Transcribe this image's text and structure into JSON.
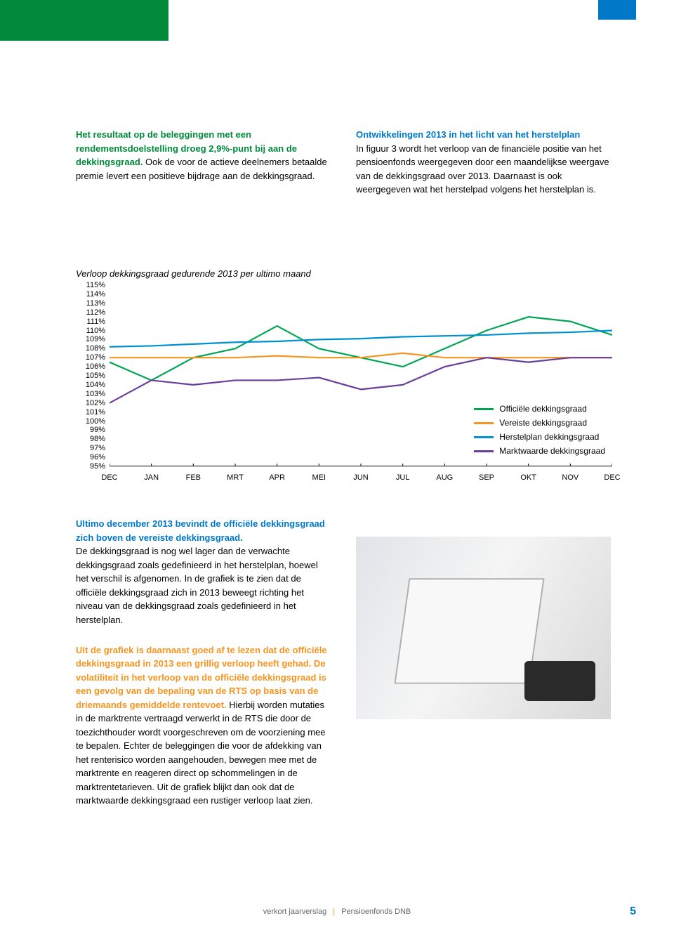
{
  "top": {
    "left_bold": "Het resultaat op de beleggingen met een rendementsdoelstelling droeg 2,9%-punt bij aan de dekkingsgraad.",
    "left_body": "Ook de voor de actieve deelnemers betaalde premie levert een positieve bijdrage aan de dekkingsgraad.",
    "right_head": "Ontwikkelingen 2013 in het licht van het herstelplan",
    "right_body": "In figuur 3 wordt het verloop van de financiële positie van het pensioenfonds weergegeven door een maandelijkse weergave van de dekkingsgraad over 2013. Daarnaast is ook weergegeven wat het herstelpad volgens het herstelplan is."
  },
  "chart": {
    "title": "Verloop dekkingsgraad gedurende 2013 per ultimo maand",
    "type": "line",
    "ylim": [
      95,
      115
    ],
    "ytick_labels": [
      "115%",
      "114%",
      "113%",
      "112%",
      "111%",
      "110%",
      "109%",
      "108%",
      "107%",
      "106%",
      "105%",
      "104%",
      "103%",
      "102%",
      "101%",
      "100%",
      "99%",
      "98%",
      "97%",
      "96%",
      "95%"
    ],
    "x_categories": [
      "DEC",
      "JAN",
      "FEB",
      "MRT",
      "APR",
      "MEI",
      "JUN",
      "JUL",
      "AUG",
      "SEP",
      "OKT",
      "NOV",
      "DEC"
    ],
    "series": [
      {
        "name": "Officiële dekkingsgraad",
        "color": "#00a651",
        "values": [
          106.5,
          104.5,
          107,
          108,
          110.5,
          108,
          107,
          106,
          108,
          110,
          111.5,
          111,
          109.5
        ]
      },
      {
        "name": "Vereiste dekkingsgraad",
        "color": "#f79520",
        "values": [
          107,
          107,
          107,
          107,
          107.2,
          107,
          107,
          107.5,
          107,
          107,
          107,
          107,
          107
        ]
      },
      {
        "name": "Herstelplan dekkingsgraad",
        "color": "#0091d0",
        "values": [
          108.2,
          108.3,
          108.5,
          108.7,
          108.8,
          109,
          109.1,
          109.3,
          109.4,
          109.5,
          109.7,
          109.8,
          110
        ]
      },
      {
        "name": "Marktwaarde dekkingsgraad",
        "color": "#6a3d9a",
        "values": [
          102,
          104.5,
          104,
          104.5,
          104.5,
          104.8,
          103.5,
          104,
          106,
          107,
          106.5,
          107,
          107
        ]
      }
    ],
    "line_width": 2.2,
    "background_color": "#ffffff",
    "grid": false
  },
  "lower": {
    "head_blue": "Ultimo december 2013 bevindt de officiële dekkingsgraad zich boven de vereiste dekkingsgraad.",
    "body1": "De dekkingsgraad is nog wel lager dan de verwachte dekkingsgraad zoals gedefinieerd in het herstelplan, hoewel het verschil is afgenomen. In de grafiek is te zien dat de officiële dekkingsgraad zich in 2013 beweegt richting het niveau van de dekkingsgraad zoals gedefinieerd in het herstelplan.",
    "head_orange": "Uit de grafiek is daarnaast goed af te lezen dat de officiële dekkingsgraad in 2013 een grillig verloop heeft gehad. De volatiliteit in het verloop van de officiële dekkingsgraad is een gevolg van de bepaling van de RTS op basis van de driemaands gemiddelde rentevoet.",
    "body2": "Hierbij worden mutaties in de marktrente vertraagd verwerkt in de RTS die door de toezichthouder wordt voorgeschreven om de voorziening mee te bepalen. Echter de beleggingen die voor de afdekking van het renterisico worden aangehouden, bewegen mee met de marktrente en reageren direct op schommelingen in de marktrentetarieven. Uit de grafiek blijkt dan ook dat de marktwaarde dekkingsgraad een rustiger verloop laat zien."
  },
  "footer": {
    "left": "verkort jaarverslag",
    "right": "Pensioenfonds DNB",
    "page": "5"
  },
  "colors": {
    "green": "#008a3a",
    "blue": "#0078c8",
    "orange": "#f79520"
  }
}
